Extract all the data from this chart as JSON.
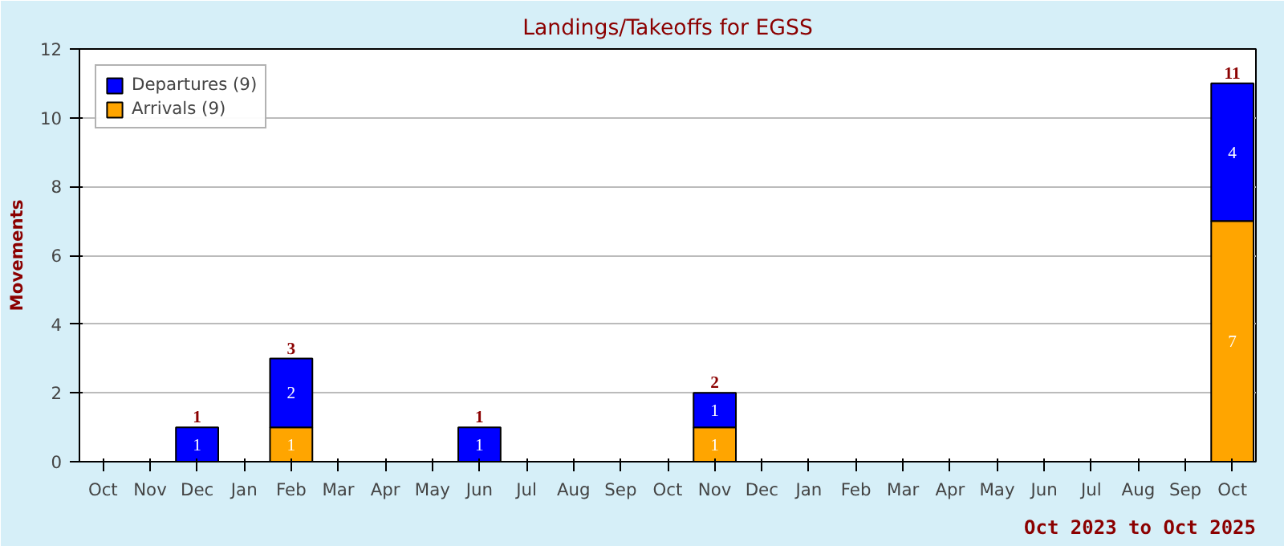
{
  "chart_data": {
    "type": "bar",
    "title": "Landings/Takeoffs for EGSS",
    "ylabel": "Movements",
    "categories": [
      "Oct",
      "Nov",
      "Dec",
      "Jan",
      "Feb",
      "Mar",
      "Apr",
      "May",
      "Jun",
      "Jul",
      "Aug",
      "Sep",
      "Oct",
      "Nov",
      "Dec",
      "Jan",
      "Feb",
      "Mar",
      "Apr",
      "May",
      "Jun",
      "Jul",
      "Aug",
      "Sep",
      "Oct"
    ],
    "stacked": true,
    "series": [
      {
        "name": "Arrivals (9)",
        "color": "#ffa500",
        "values": [
          null,
          null,
          null,
          null,
          1,
          null,
          null,
          null,
          null,
          null,
          null,
          null,
          null,
          1,
          null,
          null,
          null,
          null,
          null,
          null,
          null,
          null,
          null,
          null,
          7
        ]
      },
      {
        "name": "Departures (9)",
        "color": "#0000ff",
        "values": [
          null,
          null,
          1,
          null,
          2,
          null,
          null,
          null,
          1,
          null,
          null,
          null,
          null,
          1,
          null,
          null,
          null,
          null,
          null,
          null,
          null,
          null,
          null,
          null,
          4
        ]
      }
    ],
    "totals": [
      null,
      null,
      "1",
      null,
      "3",
      null,
      null,
      null,
      "1",
      null,
      null,
      null,
      null,
      "2",
      null,
      null,
      null,
      null,
      null,
      null,
      null,
      null,
      null,
      null,
      "11"
    ],
    "data_labels": true,
    "ylim": [
      0,
      12
    ],
    "yticks": [
      0,
      2,
      4,
      6,
      8,
      10,
      12
    ],
    "grid": "y",
    "legend": "top left",
    "annotations": [
      "Oct 2023 to Oct 2025"
    ]
  }
}
